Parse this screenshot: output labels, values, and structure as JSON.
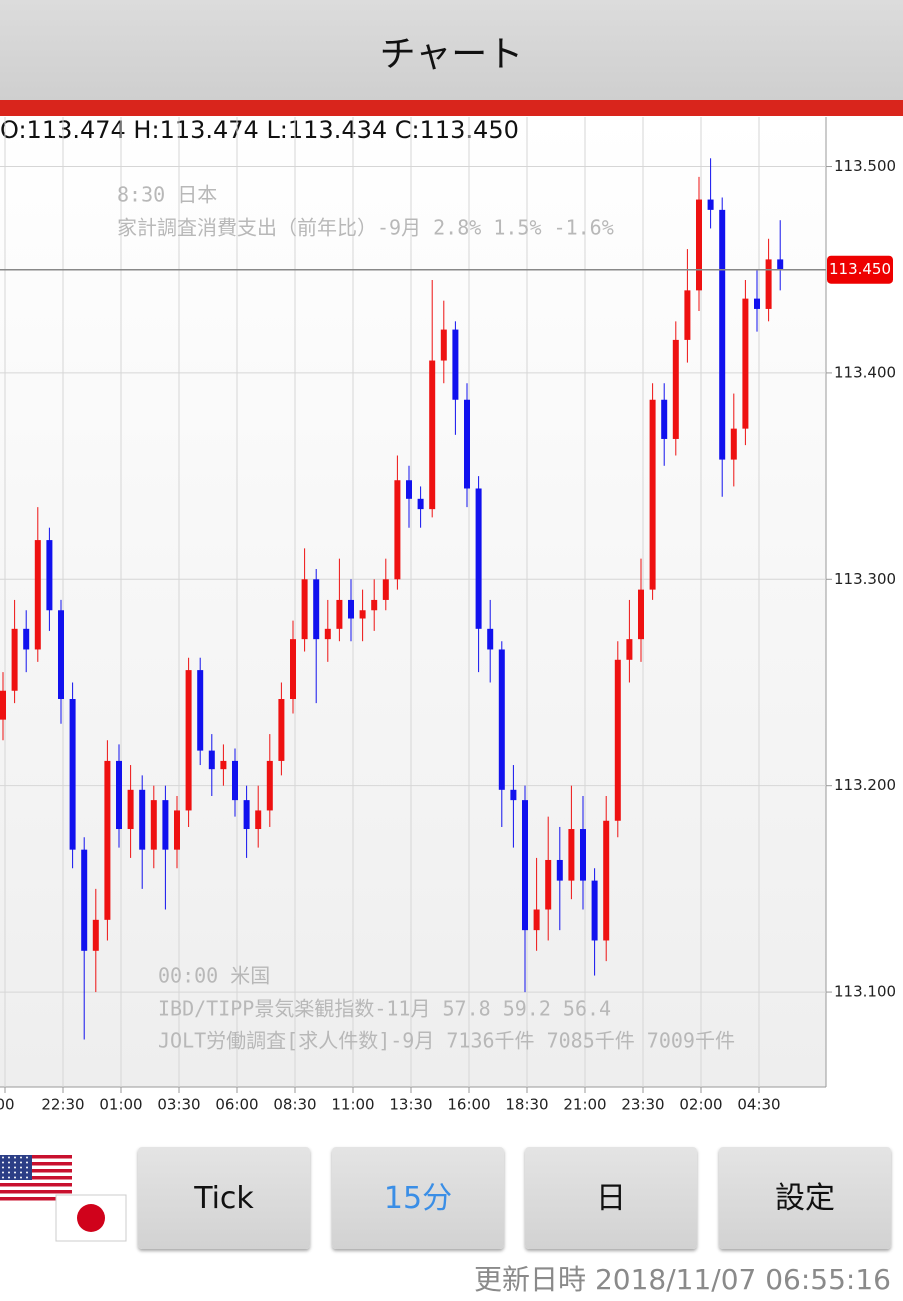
{
  "header": {
    "title": "チャート"
  },
  "ohlc_info": "O:113.474 H:113.474 L:113.434 C:113.450",
  "chart_data": {
    "type": "candlestick",
    "up_color": "#ee1111",
    "down_color": "#1111ee",
    "ylim": [
      113.054,
      113.524
    ],
    "yticks": [
      {
        "value": 113.1,
        "label": "113.100"
      },
      {
        "value": 113.2,
        "label": "113.200"
      },
      {
        "value": 113.3,
        "label": "113.300"
      },
      {
        "value": 113.4,
        "label": "113.400"
      },
      {
        "value": 113.5,
        "label": "113.500"
      }
    ],
    "grid": true,
    "current_price": {
      "value": 113.45,
      "label": "113.450"
    },
    "x_tick_labels": [
      "00",
      "22:30",
      "01:00",
      "03:30",
      "06:00",
      "08:30",
      "11:00",
      "13:30",
      "16:00",
      "18:30",
      "21:00",
      "23:30",
      "02:00",
      "04:30"
    ],
    "open": [
      113.232,
      113.246,
      113.276,
      113.266,
      113.319,
      113.285,
      113.242,
      113.169,
      113.12,
      113.135,
      113.212,
      113.179,
      113.198,
      113.169,
      113.193,
      113.169,
      113.188,
      113.256,
      113.217,
      113.208,
      113.212,
      113.193,
      113.179,
      113.188,
      113.212,
      113.242,
      113.271,
      113.3,
      113.271,
      113.276,
      113.29,
      113.281,
      113.285,
      113.29,
      113.3,
      113.348,
      113.339,
      113.334,
      113.406,
      113.421,
      113.387,
      113.344,
      113.276,
      113.266,
      113.198,
      113.193,
      113.13,
      113.14,
      113.164,
      113.154,
      113.179,
      113.154,
      113.125,
      113.183,
      113.261,
      113.271,
      113.295,
      113.387,
      113.368,
      113.416,
      113.44,
      113.484,
      113.479,
      113.358,
      113.373,
      113.436,
      113.431,
      113.455
    ],
    "high": [
      113.255,
      113.29,
      113.285,
      113.335,
      113.325,
      113.29,
      113.25,
      113.175,
      113.15,
      113.222,
      113.22,
      113.21,
      113.205,
      113.2,
      113.2,
      113.195,
      113.262,
      113.262,
      113.225,
      113.22,
      113.218,
      113.2,
      113.2,
      113.225,
      113.25,
      113.28,
      113.315,
      113.305,
      113.29,
      113.31,
      113.3,
      113.295,
      113.3,
      113.31,
      113.36,
      113.355,
      113.345,
      113.445,
      113.435,
      113.425,
      113.395,
      113.35,
      113.29,
      113.27,
      113.21,
      113.2,
      113.165,
      113.185,
      113.18,
      113.2,
      113.195,
      113.16,
      113.195,
      113.27,
      113.29,
      113.31,
      113.395,
      113.395,
      113.425,
      113.46,
      113.495,
      113.504,
      113.485,
      113.39,
      113.445,
      113.45,
      113.465,
      113.474
    ],
    "low": [
      113.222,
      113.24,
      113.255,
      113.26,
      113.275,
      113.23,
      113.16,
      113.077,
      113.1,
      113.125,
      113.17,
      113.165,
      113.15,
      113.16,
      113.14,
      113.16,
      113.18,
      113.21,
      113.195,
      113.2,
      113.185,
      113.165,
      113.17,
      113.18,
      113.205,
      113.235,
      113.265,
      113.24,
      113.26,
      113.27,
      113.27,
      113.27,
      113.275,
      113.285,
      113.295,
      113.325,
      113.325,
      113.33,
      113.395,
      113.37,
      113.335,
      113.255,
      113.25,
      113.18,
      113.17,
      113.1,
      113.12,
      113.125,
      113.13,
      113.145,
      113.14,
      113.108,
      113.115,
      113.175,
      113.25,
      113.26,
      113.29,
      113.355,
      113.36,
      113.405,
      113.43,
      113.47,
      113.34,
      113.345,
      113.365,
      113.42,
      113.425,
      113.44
    ],
    "close": [
      113.246,
      113.276,
      113.266,
      113.319,
      113.285,
      113.242,
      113.169,
      113.12,
      113.135,
      113.212,
      113.179,
      113.198,
      113.169,
      113.193,
      113.169,
      113.188,
      113.256,
      113.217,
      113.208,
      113.212,
      113.193,
      113.179,
      113.188,
      113.212,
      113.242,
      113.271,
      113.3,
      113.271,
      113.276,
      113.29,
      113.281,
      113.285,
      113.29,
      113.3,
      113.348,
      113.339,
      113.334,
      113.406,
      113.421,
      113.387,
      113.344,
      113.276,
      113.266,
      113.198,
      113.193,
      113.13,
      113.14,
      113.164,
      113.154,
      113.179,
      113.154,
      113.125,
      113.183,
      113.261,
      113.271,
      113.295,
      113.387,
      113.368,
      113.416,
      113.44,
      113.484,
      113.479,
      113.358,
      113.373,
      113.436,
      113.431,
      113.455,
      113.45
    ],
    "annotations": [
      "8:30 日本",
      "家計調査消費支出（前年比）-9月 2.8% 1.5% -1.6%",
      "00:00 米国",
      "IBD/TIPP景気楽観指数-11月 57.8 59.2  56.4",
      "JOLT労働調査[求人件数]-9月 7136千件 7085千件  7009千件"
    ]
  },
  "buttons": [
    "Tick",
    "15分",
    "日",
    "設定"
  ],
  "footer": "更新日時 2018/11/07 06:55:16"
}
